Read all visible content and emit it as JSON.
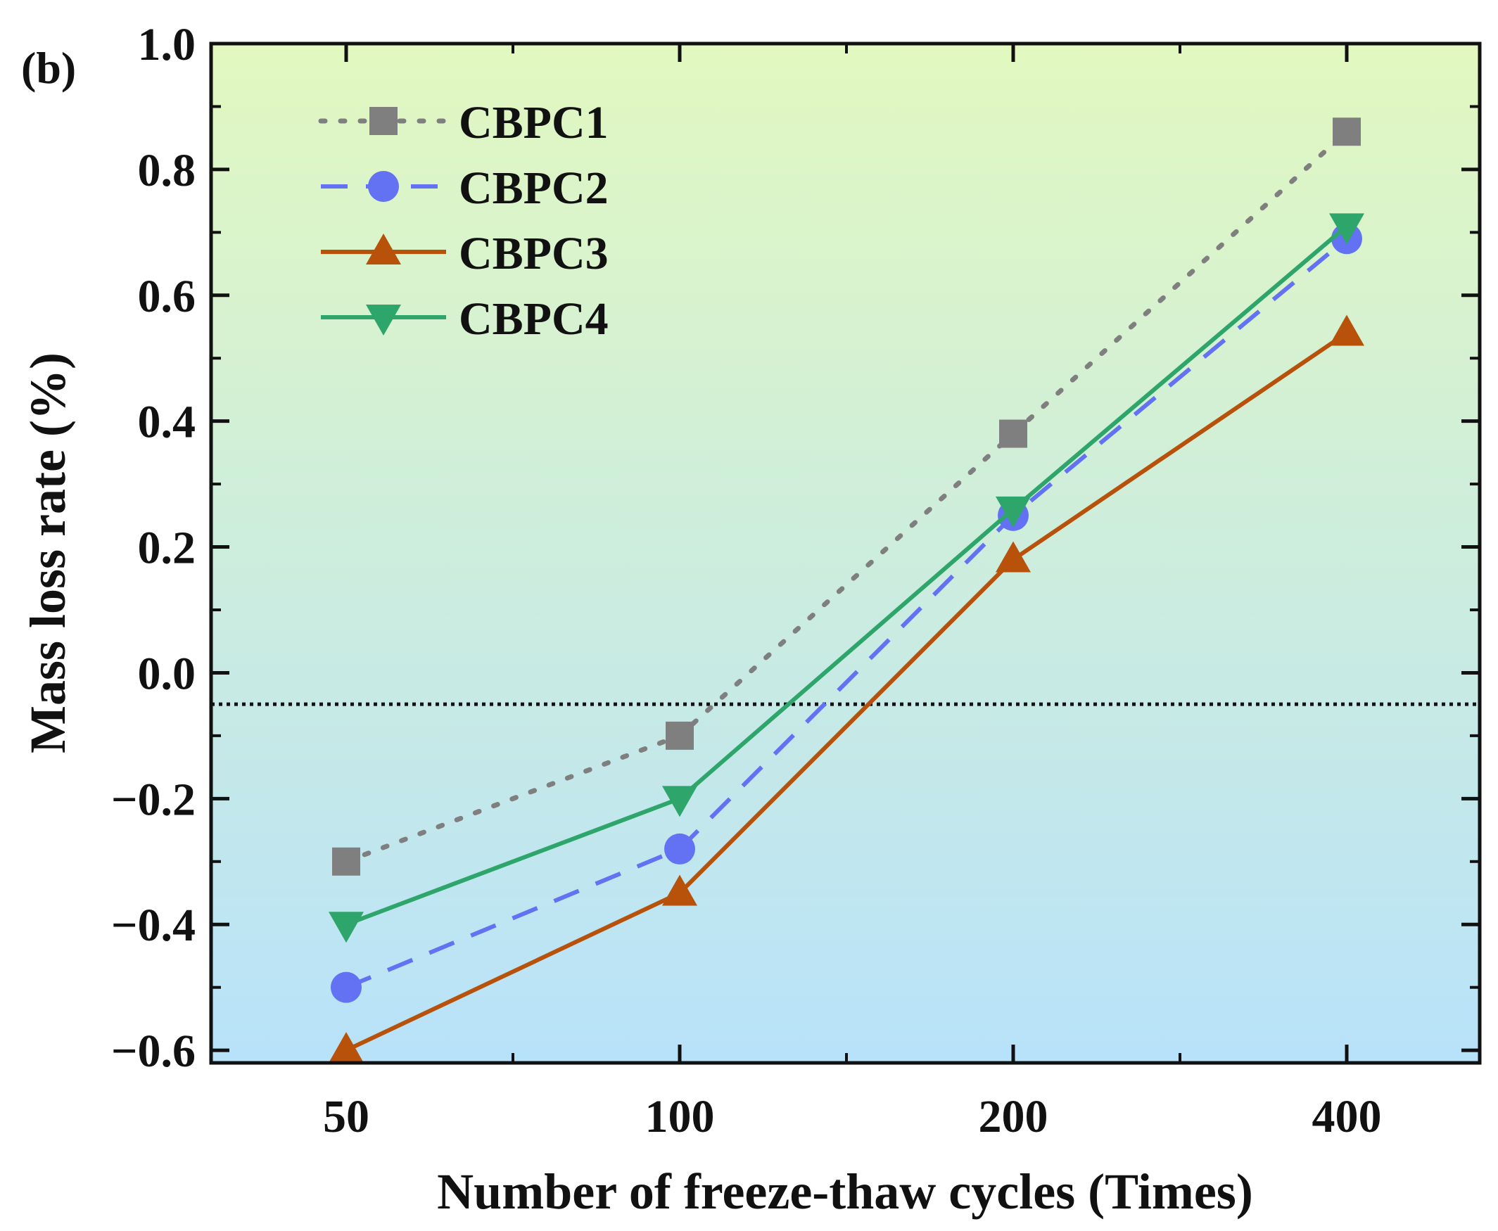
{
  "panel_label": "(b)",
  "chart_data": {
    "type": "line",
    "title": "",
    "xlabel": "Number of freeze-thaw cycles (Times)",
    "ylabel": "Mass loss rate (%)",
    "categories": [
      "50",
      "100",
      "200",
      "400"
    ],
    "ylim": [
      -0.62,
      1.0
    ],
    "yticks": [
      -0.6,
      -0.4,
      -0.2,
      0.0,
      0.2,
      0.4,
      0.6,
      0.8,
      1.0
    ],
    "ytick_labels": [
      "−0.6",
      "−0.4",
      "−0.2",
      "0.0",
      "0.2",
      "0.4",
      "0.6",
      "0.8",
      "1.0"
    ],
    "reference_line": -0.05,
    "background_gradient": [
      "#e2f8c0",
      "#b8e2fa"
    ],
    "legend_position": "top-left",
    "series": [
      {
        "name": "CBPC1",
        "values": [
          -0.3,
          -0.1,
          0.38,
          0.86
        ],
        "color": "#7f7f7f",
        "marker": "square",
        "line": "dotted"
      },
      {
        "name": "CBPC2",
        "values": [
          -0.5,
          -0.28,
          0.25,
          0.69
        ],
        "color": "#6272f2",
        "marker": "circle",
        "line": "dashed"
      },
      {
        "name": "CBPC3",
        "values": [
          -0.6,
          -0.35,
          0.18,
          0.54
        ],
        "color": "#b8520a",
        "marker": "triangle-up",
        "line": "solid"
      },
      {
        "name": "CBPC4",
        "values": [
          -0.4,
          -0.2,
          0.26,
          0.71
        ],
        "color": "#2ea56a",
        "marker": "triangle-down",
        "line": "solid"
      }
    ]
  }
}
